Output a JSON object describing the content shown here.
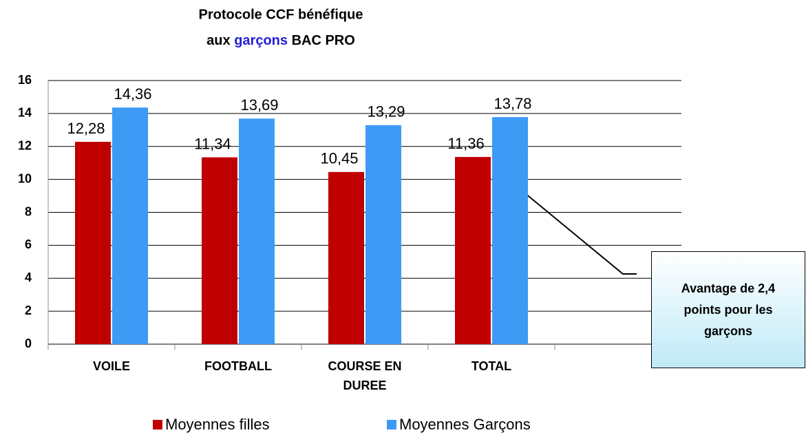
{
  "chart_data": {
    "type": "bar",
    "title": [
      "Protocole CCF bénéfique",
      "aux",
      "garçons",
      "BAC PRO"
    ],
    "title_highlight_color": "#1f1fd6",
    "categories": [
      "VOILE",
      "FOOTBALL",
      "COURSE EN DUREE",
      "TOTAL",
      null
    ],
    "series": [
      {
        "name": "Moyennes filles",
        "color": "#c00000",
        "values": [
          12.28,
          11.34,
          10.45,
          11.36,
          null
        ],
        "value_labels": [
          "12,28",
          "11,34",
          "10,45",
          "11,36",
          null
        ]
      },
      {
        "name": "Moyennes Garçons",
        "color": "#3d9bf5",
        "values": [
          14.36,
          13.69,
          13.29,
          13.78,
          null
        ],
        "value_labels": [
          "14,36",
          "13,69",
          "13,29",
          "13,78",
          null
        ]
      }
    ],
    "ylim": [
      0,
      16
    ],
    "yticks": [
      0,
      2,
      4,
      6,
      8,
      10,
      12,
      14,
      16
    ],
    "grid": true,
    "legend": "bottom",
    "annotation": "Avantage de 2,4 points pour les garçons"
  }
}
